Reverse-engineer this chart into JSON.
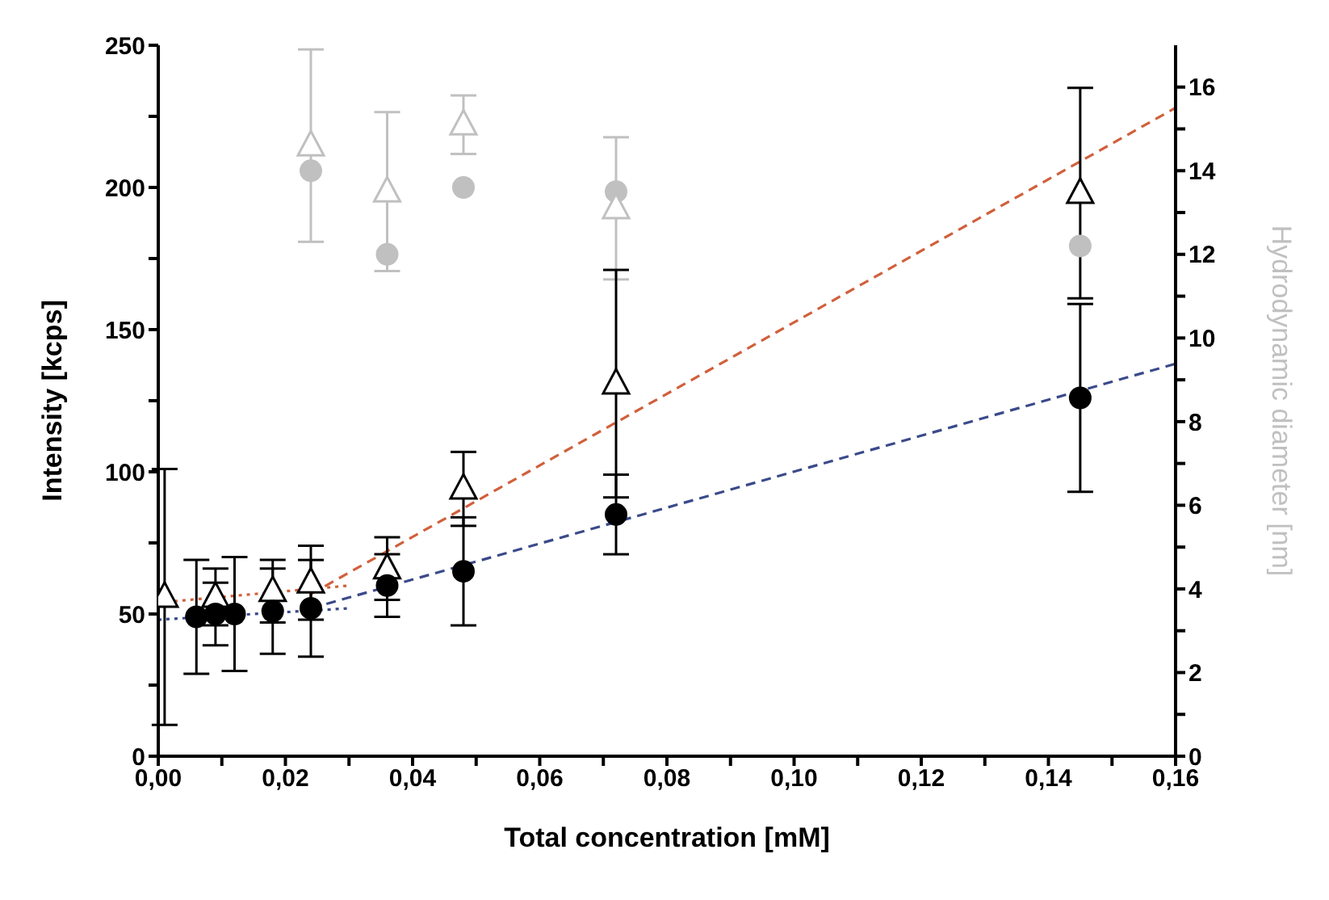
{
  "chart_data": {
    "type": "scatter",
    "xlabel": "Total concentration [mM]",
    "ylabel": "Intensity [kcps]",
    "y2label": "Hydrodynamic diameter [nm]",
    "xlim": [
      0,
      0.16
    ],
    "xticks": [
      {
        "value": 0,
        "label": "0,00"
      },
      {
        "value": 0.01,
        "label": null
      },
      {
        "value": 0.02,
        "label": "0,02"
      },
      {
        "value": 0.03,
        "label": null
      },
      {
        "value": 0.04,
        "label": "0,04"
      },
      {
        "value": 0.05,
        "label": null
      },
      {
        "value": 0.06,
        "label": "0,06"
      },
      {
        "value": 0.07,
        "label": null
      },
      {
        "value": 0.08,
        "label": "0,08"
      },
      {
        "value": 0.09,
        "label": null
      },
      {
        "value": 0.1,
        "label": "0,10"
      },
      {
        "value": 0.11,
        "label": null
      },
      {
        "value": 0.12,
        "label": "0,12"
      },
      {
        "value": 0.13,
        "label": null
      },
      {
        "value": 0.14,
        "label": "0,14"
      },
      {
        "value": 0.15,
        "label": null
      },
      {
        "value": 0.16,
        "label": "0,16"
      }
    ],
    "ylim": [
      0,
      250
    ],
    "yticks": [
      0,
      {
        "value": 25,
        "label": null
      },
      50,
      {
        "value": 75,
        "label": null
      },
      100,
      {
        "value": 125,
        "label": null
      },
      150,
      {
        "value": 175,
        "label": null
      },
      200,
      {
        "value": 225,
        "label": null
      },
      250
    ],
    "y2lim": [
      0,
      17
    ],
    "y2ticks": [
      0,
      {
        "value": 1,
        "label": null
      },
      2,
      {
        "value": 3,
        "label": null
      },
      4,
      {
        "value": 5,
        "label": null
      },
      6,
      {
        "value": 7,
        "label": null
      },
      8,
      {
        "value": 9,
        "label": null
      },
      10,
      {
        "value": 11,
        "label": null
      },
      12,
      {
        "value": 13,
        "label": null
      },
      14,
      {
        "value": 15,
        "label": null
      },
      16
    ],
    "grid": false,
    "legend": false,
    "series": [
      {
        "color": "#c0c0c0",
        "axis": "y2",
        "marker": "circle",
        "x": [
          0.024,
          0.036,
          0.048,
          0.072,
          0.145
        ],
        "values": [
          14.0,
          12.0,
          13.6,
          13.5,
          12.2
        ]
      },
      {
        "color": "#c0c0c0",
        "axis": "y2",
        "marker": "triangle",
        "x": [
          0.024,
          0.036,
          0.048,
          0.072
        ],
        "values": [
          14.6,
          13.5,
          15.1,
          13.1
        ],
        "errors": [
          2.3,
          1.9,
          0.7,
          1.7
        ]
      },
      {
        "type": "line",
        "color": "#d0603c",
        "line_style": "dotted",
        "marker": "none",
        "x": [
          0,
          0.03
        ],
        "values": [
          54,
          60
        ]
      },
      {
        "type": "line",
        "color": "#3a4a8a",
        "line_style": "dotted",
        "marker": "none",
        "x": [
          0,
          0.03
        ],
        "values": [
          48,
          52
        ]
      },
      {
        "type": "line",
        "color": "#d0603c",
        "line_style": "dashed",
        "marker": "none",
        "x": [
          0.024,
          0.16
        ],
        "values": [
          57,
          228
        ]
      },
      {
        "type": "line",
        "color": "#3a4a8a",
        "line_style": "dashed",
        "marker": "none",
        "x": [
          0.024,
          0.16
        ],
        "values": [
          52,
          138
        ]
      },
      {
        "color": "#000000",
        "marker": "triangle",
        "x": [
          0.001,
          0.009,
          0.018,
          0.024,
          0.036,
          0.048,
          0.072,
          0.145
        ],
        "values": [
          56,
          56,
          58,
          61,
          66,
          94,
          131,
          198
        ],
        "errors": [
          45,
          10,
          11,
          13,
          11,
          13,
          40,
          37
        ]
      },
      {
        "color": "#000000",
        "marker": "circle",
        "x": [
          0.006,
          0.009,
          0.012,
          0.018,
          0.024,
          0.036,
          0.048,
          0.072,
          0.145
        ],
        "values": [
          49,
          50,
          50,
          51,
          52,
          60,
          65,
          85,
          126
        ],
        "errors": [
          20,
          11,
          20,
          15,
          17,
          11,
          19,
          14,
          33
        ]
      }
    ]
  }
}
